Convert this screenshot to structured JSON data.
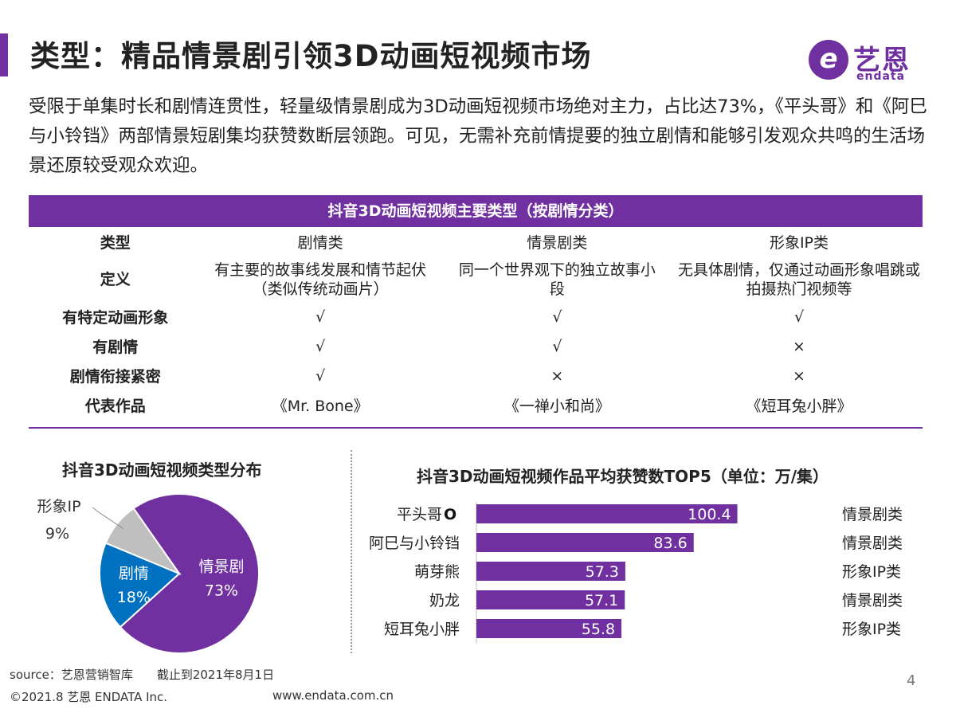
{
  "header": {
    "title": "类型：精品情景剧引领3D动画短视频市场",
    "logo_cn": "艺恩",
    "logo_en": "endata"
  },
  "intro": "受限于单集时长和剧情连贯性，轻量级情景剧成为3D动画短视频市场绝对主力，占比达73%，《平头哥》和《阿巳与小铃铛》两部情景短剧集均获赞数断层领跑。可见，无需补充前情提要的独立剧情和能够引发观众共鸣的生活场景还原较受观众欢迎。",
  "table": {
    "title": "抖音3D动画短视频主要类型（按剧情分类）",
    "rows": [
      {
        "label": "类型",
        "c1": "剧情类",
        "c2": "情景剧类",
        "c3": "形象IP类"
      },
      {
        "label": "定义",
        "c1": "有主要的故事线发展和情节起伏（类似传统动画片）",
        "c2": "同一个世界观下的独立故事小段",
        "c3": "无具体剧情，仅通过动画形象唱跳或拍摄热门视频等"
      },
      {
        "label": "有特定动画形象",
        "c1": "√",
        "c2": "√",
        "c3": "√"
      },
      {
        "label": "有剧情",
        "c1": "√",
        "c2": "√",
        "c3": "×"
      },
      {
        "label": "剧情衔接紧密",
        "c1": "√",
        "c2": "×",
        "c3": "×"
      },
      {
        "label": "代表作品",
        "c1": "《Mr. Bone》",
        "c2": "《一禅小和尚》",
        "c3": "《短耳兔小胖》"
      }
    ]
  },
  "chart_data": [
    {
      "type": "pie",
      "title": "抖音3D动画短视频类型分布",
      "slices": [
        {
          "label": "情景剧",
          "value": 73,
          "value_label": "73%",
          "color": "#7030a0"
        },
        {
          "label": "剧情",
          "value": 18,
          "value_label": "18%",
          "color": "#0070c0"
        },
        {
          "label": "形象IP",
          "value": 9,
          "value_label": "9%",
          "color": "#bfbfbf"
        }
      ]
    },
    {
      "type": "bar",
      "orientation": "horizontal",
      "title": "抖音3D动画短视频作品平均获赞数TOP5（单位：万/集）",
      "categories": [
        "平头哥",
        "阿巳与小铃铛",
        "萌芽熊",
        "奶龙",
        "短耳兔小胖"
      ],
      "values": [
        100.4,
        83.6,
        57.3,
        57.1,
        55.8
      ],
      "value_labels": [
        "100.4",
        "83.6",
        "57.3",
        "57.1",
        "55.8"
      ],
      "types": [
        "情景剧类",
        "情景剧类",
        "形象IP类",
        "情景剧类",
        "形象IP类"
      ],
      "first_category_marker": "O",
      "color": "#7030a0",
      "xlim": [
        0,
        160
      ]
    }
  ],
  "footer": {
    "source": "source：艺恩营销智库　　截止到2021年8月1日",
    "copyright": "©2021.8 艺恩 ENDATA Inc.",
    "url": "www.endata.com.cn",
    "page": "4"
  }
}
